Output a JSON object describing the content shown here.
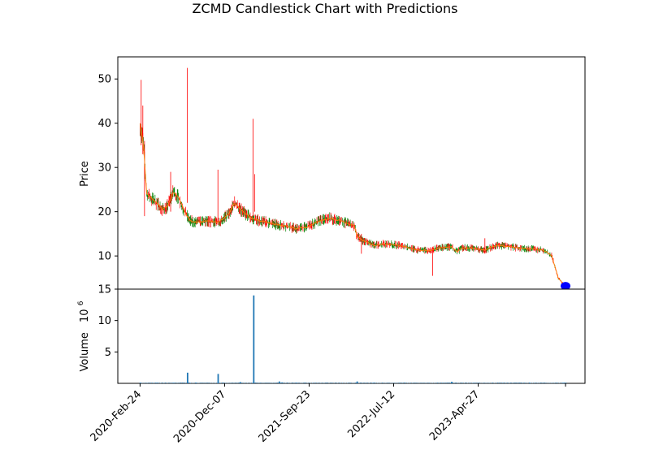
{
  "chart_data": {
    "type": "candlestick",
    "title": "ZCMD Candlestick Chart with Predictions",
    "colors": {
      "up": "#008000",
      "down": "#ff0000",
      "close_line": "#ff7f0e",
      "prediction": "#0000ff",
      "volume": "#1f77b4"
    },
    "price_panel": {
      "ylabel": "Price",
      "ylim": [
        2.5,
        55
      ],
      "yticks": [
        10,
        20,
        30,
        40,
        50
      ],
      "series_close": [
        [
          0,
          40
        ],
        [
          6,
          35
        ],
        [
          12,
          24
        ],
        [
          20,
          23
        ],
        [
          30,
          22
        ],
        [
          40,
          20.5
        ],
        [
          48,
          21
        ],
        [
          55,
          23
        ],
        [
          60,
          24.5
        ],
        [
          70,
          23
        ],
        [
          80,
          20
        ],
        [
          90,
          18
        ],
        [
          100,
          17.6
        ],
        [
          120,
          17.8
        ],
        [
          140,
          17.7
        ],
        [
          150,
          18.5
        ],
        [
          160,
          19.5
        ],
        [
          170,
          22
        ],
        [
          180,
          20.5
        ],
        [
          190,
          19.5
        ],
        [
          200,
          18.5
        ],
        [
          220,
          17.8
        ],
        [
          240,
          17.2
        ],
        [
          260,
          16.8
        ],
        [
          280,
          16.2
        ],
        [
          300,
          16.5
        ],
        [
          310,
          17.2
        ],
        [
          325,
          18
        ],
        [
          340,
          18.5
        ],
        [
          360,
          18
        ],
        [
          375,
          17.3
        ],
        [
          385,
          16.8
        ],
        [
          390,
          14.5
        ],
        [
          400,
          13.5
        ],
        [
          410,
          13
        ],
        [
          420,
          12.4
        ],
        [
          440,
          12.7
        ],
        [
          460,
          12.5
        ],
        [
          480,
          12
        ],
        [
          500,
          11.3
        ],
        [
          520,
          11.2
        ],
        [
          540,
          11.9
        ],
        [
          560,
          12
        ],
        [
          570,
          11
        ],
        [
          580,
          11.8
        ],
        [
          600,
          11.8
        ],
        [
          610,
          11.5
        ],
        [
          620,
          11.3
        ],
        [
          640,
          12.4
        ],
        [
          660,
          12.2
        ],
        [
          680,
          11.8
        ],
        [
          700,
          11.6
        ],
        [
          720,
          11.4
        ],
        [
          730,
          11
        ],
        [
          740,
          10
        ],
        [
          745,
          8
        ],
        [
          752,
          5
        ],
        [
          760,
          3.8
        ],
        [
          765,
          3.6
        ]
      ],
      "spikes": [
        {
          "x": 2,
          "high": 49.8,
          "low": 35
        },
        {
          "x": 5,
          "high": 44,
          "low": 33
        },
        {
          "x": 8,
          "high": 36,
          "low": 19
        },
        {
          "x": 55,
          "high": 29,
          "low": 20
        },
        {
          "x": 85,
          "high": 52.5,
          "low": 22
        },
        {
          "x": 140,
          "high": 29.5,
          "low": 17
        },
        {
          "x": 203,
          "high": 41,
          "low": 19
        },
        {
          "x": 206,
          "high": 28.5,
          "low": 20
        },
        {
          "x": 526,
          "high": 12,
          "low": 5.5
        },
        {
          "x": 398,
          "high": 15,
          "low": 10.5
        },
        {
          "x": 620,
          "high": 14,
          "low": 10.5
        }
      ],
      "prediction": {
        "x": 765,
        "y": 3.2
      }
    },
    "volume_panel": {
      "ylabel": "Volume",
      "multiplier_label": "10",
      "multiplier_exp": "6",
      "ylim": [
        0,
        15
      ],
      "yticks": [
        5,
        10,
        15
      ],
      "bars": [
        [
          0,
          0.1
        ],
        [
          30,
          0.1
        ],
        [
          60,
          0.1
        ],
        [
          85,
          1.7
        ],
        [
          100,
          0.12
        ],
        [
          140,
          1.5
        ],
        [
          180,
          0.2
        ],
        [
          204,
          14
        ],
        [
          250,
          0.3
        ],
        [
          255,
          0.15
        ],
        [
          280,
          0.12
        ],
        [
          390,
          0.3
        ],
        [
          420,
          0.1
        ],
        [
          560,
          0.25
        ],
        [
          600,
          0.1
        ],
        [
          700,
          0.1
        ],
        [
          760,
          0.1
        ]
      ]
    },
    "x_axis": {
      "xlim": [
        -40,
        800
      ],
      "ticks": [
        {
          "x": 0,
          "label": "2020-Feb-24"
        },
        {
          "x": 152,
          "label": "2020-Dec-07"
        },
        {
          "x": 304,
          "label": "2021-Sep-23"
        },
        {
          "x": 456,
          "label": "2022-Jul-12"
        },
        {
          "x": 608,
          "label": "2023-Apr-27"
        },
        {
          "x": 765,
          "label": ""
        }
      ]
    }
  }
}
